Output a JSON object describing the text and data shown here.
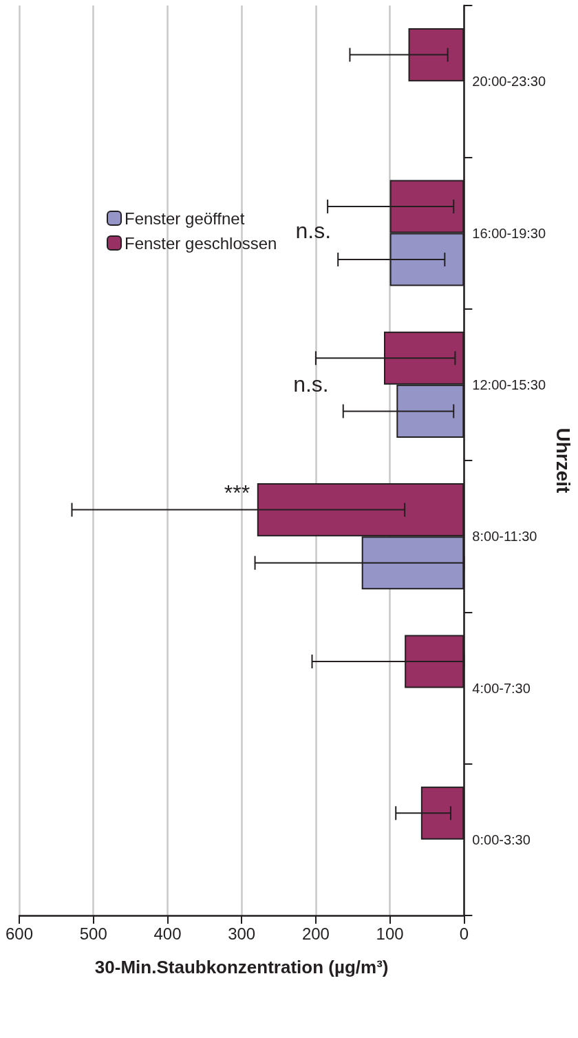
{
  "chart_data": {
    "type": "bar",
    "orientation": "horizontal",
    "xlabel": "30-Min.Staubkonzentration (µg/m³)",
    "ylabel": "Uhrzeit",
    "categories": [
      "20:00-23:30",
      "16:00-19:30",
      "12:00-15:30",
      "8:00-11:30",
      "4:00-7:30",
      "0:00-3:30"
    ],
    "series": [
      {
        "name": "Fenster geöffnet",
        "color": "#9595c8",
        "values": [
          null,
          100,
          91,
          138,
          null,
          null
        ],
        "errors": [
          null,
          [
            26,
            170
          ],
          [
            14,
            163
          ],
          [
            0,
            282
          ],
          null,
          null
        ]
      },
      {
        "name": "Fenster geschlossen",
        "color": "#993063",
        "values": [
          75,
          100,
          108,
          279,
          80,
          58
        ],
        "errors": [
          [
            22,
            154
          ],
          [
            14,
            184
          ],
          [
            12,
            200
          ],
          [
            80,
            529
          ],
          [
            0,
            205
          ],
          [
            18,
            92
          ]
        ]
      }
    ],
    "xlim": [
      600,
      0
    ],
    "xticks": [
      600,
      500,
      400,
      300,
      200,
      100,
      0
    ],
    "grid": "x",
    "legend": "top",
    "annotations": [
      "***",
      "n.s.",
      "n.s."
    ]
  }
}
